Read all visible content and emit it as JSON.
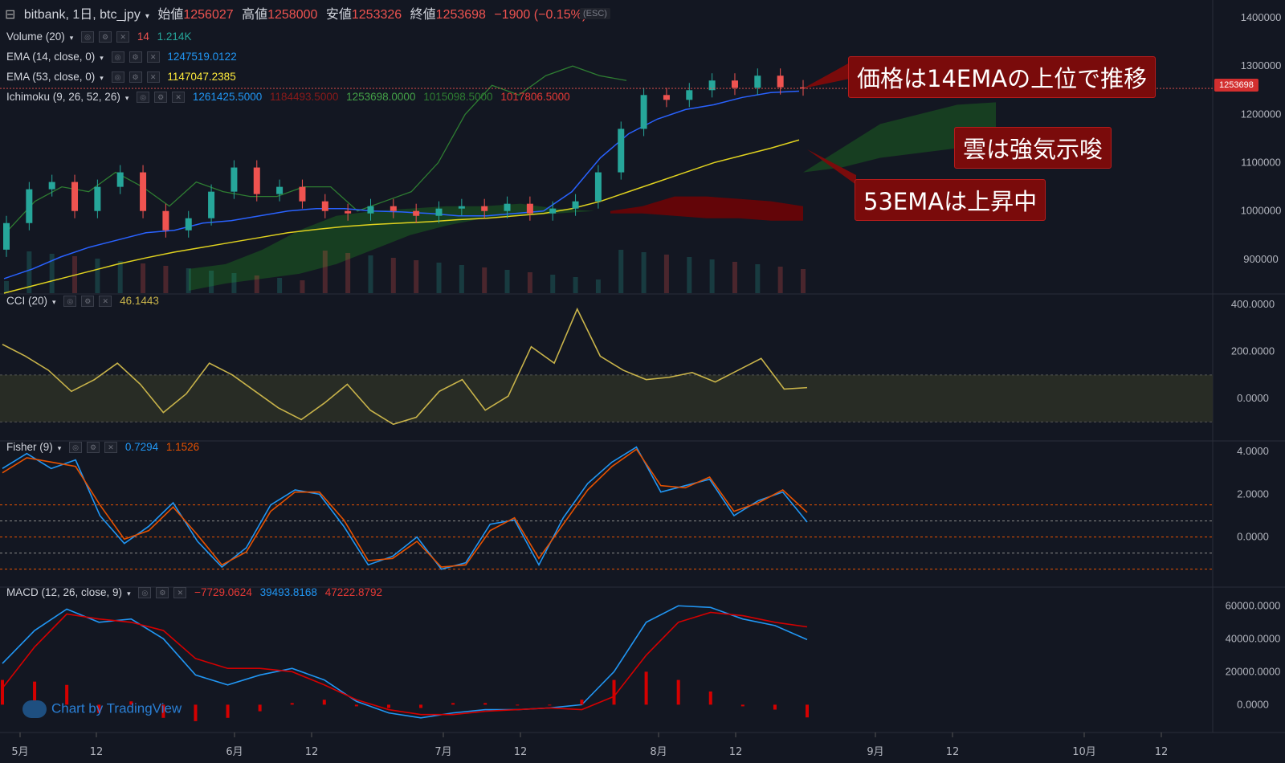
{
  "header": {
    "title": "bitbank, 1日, btc_jpy",
    "open_label": "始値",
    "open_value": "1256027",
    "high_label": "高値",
    "high_value": "1258000",
    "low_label": "安値",
    "low_value": "1253326",
    "close_label": "終値",
    "close_value": "1253698",
    "change": "−1900 (−0.15%)",
    "esc_hint": "(ESC)"
  },
  "indicators": {
    "volume": {
      "label": "Volume (20)",
      "v1": "14",
      "v2": "1.214K"
    },
    "ema14": {
      "label": "EMA (14, close, 0)",
      "value": "1247519.0122"
    },
    "ema53": {
      "label": "EMA (53, close, 0)",
      "value": "1147047.2385"
    },
    "ichimoku": {
      "label": "Ichimoku (9, 26, 52, 26)",
      "values": [
        "1261425.5000",
        "1184493.5000",
        "1253698.0000",
        "1015098.5000",
        "1017806.5000"
      ]
    },
    "cci": {
      "label": "CCI (20)",
      "value": "46.1443"
    },
    "fisher": {
      "label": "Fisher (9)",
      "v1": "0.7294",
      "v2": "1.1526"
    },
    "macd": {
      "label": "MACD (12, 26, close, 9)",
      "values": [
        "−7729.0624",
        "39493.8168",
        "47222.8792"
      ]
    }
  },
  "annotations": [
    "価格は14EMAの上位で推移",
    "雲は強気示唆",
    "53EMAは上昇中"
  ],
  "watermark": "Chart by TradingView",
  "price_badge": "1253698",
  "colors": {
    "bg": "#131722",
    "up": "#26a69a",
    "down": "#ef5350",
    "ema14": "#2962ff",
    "ema53": "#e0d21f",
    "cloud_bull": "#1b5e20",
    "cloud_bear": "#7f0000",
    "tenkan": "#2196f3",
    "kijun": "#b71c1c",
    "chikou": "#2e7d32",
    "cci": "#c8b34a",
    "fisher1": "#2196f3",
    "fisher2": "#e65100",
    "macd": "#2196f3",
    "signal": "#d50000",
    "hist": "#d50000"
  },
  "chart_data": [
    {
      "type": "candlestick",
      "pane": "price",
      "x_ticks": [
        "5月",
        "12",
        "6月",
        "12",
        "7月",
        "12",
        "8月",
        "12",
        "9月",
        "12",
        "10月",
        "12"
      ],
      "y_ticks": [
        "1400000",
        "1300000",
        "1200000",
        "1100000",
        "1000000",
        "900000"
      ],
      "ylim": [
        830000,
        1420000
      ],
      "series": [
        {
          "name": "EMA (14, close, 0)",
          "values": [
            860000,
            880000,
            905000,
            925000,
            940000,
            955000,
            960000,
            975000,
            980000,
            990000,
            1000000,
            1005000,
            1005000,
            1000000,
            998000,
            995000,
            990000,
            990000,
            995000,
            1000000,
            1040000,
            1110000,
            1160000,
            1190000,
            1210000,
            1220000,
            1235000,
            1245000,
            1248000
          ]
        },
        {
          "name": "EMA (53, close, 0)",
          "values": [
            830000,
            845000,
            860000,
            875000,
            890000,
            903000,
            915000,
            925000,
            935000,
            945000,
            955000,
            962000,
            968000,
            972000,
            975000,
            978000,
            982000,
            985000,
            990000,
            995000,
            1005000,
            1020000,
            1040000,
            1060000,
            1080000,
            1100000,
            1115000,
            1130000,
            1147000
          ]
        }
      ],
      "candles": [
        [
          920000,
          975000
        ],
        [
          975000,
          1045000
        ],
        [
          1045000,
          1060000
        ],
        [
          1060000,
          1000000
        ],
        [
          1000000,
          1050000
        ],
        [
          1050000,
          1080000
        ],
        [
          1080000,
          1000000
        ],
        [
          1000000,
          960000
        ],
        [
          960000,
          985000
        ],
        [
          985000,
          1040000
        ],
        [
          1040000,
          1090000
        ],
        [
          1090000,
          1035000
        ],
        [
          1035000,
          1050000
        ],
        [
          1050000,
          1020000
        ],
        [
          1020000,
          1000000
        ],
        [
          1000000,
          995000
        ],
        [
          995000,
          1010000
        ],
        [
          1010000,
          1000000
        ],
        [
          1000000,
          990000
        ],
        [
          990000,
          1005000
        ],
        [
          1005000,
          1010000
        ],
        [
          1010000,
          1000000
        ],
        [
          1000000,
          1015000
        ],
        [
          1015000,
          995000
        ],
        [
          995000,
          1005000
        ],
        [
          1005000,
          1020000
        ],
        [
          1020000,
          1080000
        ],
        [
          1080000,
          1170000
        ],
        [
          1170000,
          1240000
        ],
        [
          1240000,
          1230000
        ],
        [
          1230000,
          1250000
        ],
        [
          1250000,
          1270000
        ],
        [
          1270000,
          1255000
        ],
        [
          1255000,
          1280000
        ],
        [
          1280000,
          1256000
        ],
        [
          1256000,
          1253698
        ]
      ]
    },
    {
      "type": "line",
      "pane": "CCI (20)",
      "y_ticks": [
        "400.0000",
        "200.0000",
        "0.0000"
      ],
      "ylim": [
        -150,
        400
      ],
      "series": [
        {
          "name": "CCI",
          "values": [
            230,
            180,
            120,
            30,
            80,
            150,
            60,
            -60,
            20,
            150,
            100,
            30,
            -40,
            -90,
            -20,
            60,
            -50,
            -110,
            -80,
            30,
            80,
            -50,
            10,
            220,
            150,
            380,
            180,
            120,
            80,
            90,
            110,
            70,
            120,
            170,
            40,
            46
          ]
        }
      ]
    },
    {
      "type": "line",
      "pane": "Fisher (9)",
      "y_ticks": [
        "4.0000",
        "2.0000",
        "0.0000"
      ],
      "ylim": [
        -2,
        4
      ],
      "series": [
        {
          "name": "Fisher",
          "values": [
            3.2,
            3.9,
            3.2,
            3.6,
            1.0,
            -0.3,
            0.5,
            1.6,
            -0.2,
            -1.4,
            -0.5,
            1.5,
            2.2,
            2.0,
            0.5,
            -1.3,
            -0.9,
            0.0,
            -1.5,
            -1.2,
            0.6,
            0.8,
            -1.3,
            0.9,
            2.5,
            3.5,
            4.2,
            2.1,
            2.4,
            2.7,
            1.0,
            1.7,
            2.1,
            0.7
          ]
        },
        {
          "name": "Trigger",
          "values": [
            3.0,
            3.7,
            3.5,
            3.3,
            1.5,
            -0.1,
            0.3,
            1.4,
            0.1,
            -1.3,
            -0.7,
            1.2,
            2.1,
            2.1,
            0.8,
            -1.1,
            -1.0,
            -0.2,
            -1.4,
            -1.3,
            0.3,
            0.9,
            -1.0,
            0.6,
            2.2,
            3.3,
            4.1,
            2.4,
            2.3,
            2.8,
            1.2,
            1.6,
            2.2,
            1.15
          ]
        }
      ]
    },
    {
      "type": "line",
      "pane": "MACD (12, 26, close, 9)",
      "y_ticks": [
        "60000.0000",
        "40000.0000",
        "20000.0000",
        "0.0000"
      ],
      "ylim": [
        -12000,
        65000
      ],
      "series": [
        {
          "name": "MACD",
          "values": [
            25000,
            45000,
            58000,
            50000,
            52000,
            40000,
            18000,
            12000,
            18000,
            22000,
            15000,
            2000,
            -5000,
            -8000,
            -5000,
            -3000,
            -3000,
            -2000,
            0,
            20000,
            50000,
            60000,
            59000,
            52000,
            48000,
            39493
          ]
        },
        {
          "name": "Signal",
          "values": [
            10000,
            35000,
            55000,
            52000,
            50000,
            45000,
            28000,
            22000,
            22000,
            20000,
            12000,
            3000,
            -3000,
            -6000,
            -6000,
            -4000,
            -3000,
            -2000,
            -3000,
            5000,
            30000,
            50000,
            56000,
            54000,
            50000,
            47222
          ]
        },
        {
          "name": "Histogram",
          "values": [
            15000,
            14000,
            12000,
            -5000,
            2000,
            -8000,
            -10000,
            -8000,
            -4000,
            1000,
            3000,
            -1000,
            -2000,
            -2000,
            1000,
            1000,
            0,
            0,
            3000,
            15000,
            20000,
            15000,
            8000,
            -1000,
            -3000,
            -7729
          ]
        }
      ]
    }
  ]
}
